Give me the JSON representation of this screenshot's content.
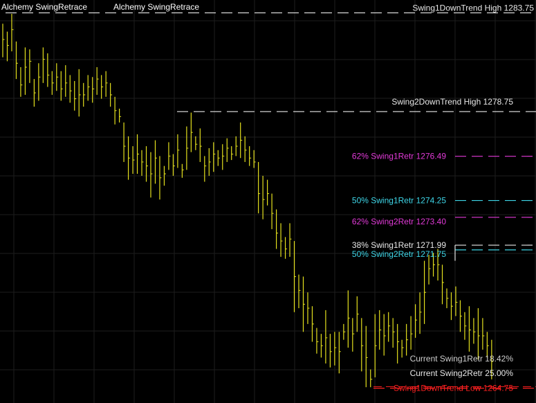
{
  "window": {
    "titles": [
      "Alchemy SwingRetrace",
      "Alchemy SwingRetrace"
    ]
  },
  "colors": {
    "background": "#000000",
    "grid": "#1e1e1e",
    "bars": "#e6e21e",
    "white": "#e8e8e8",
    "magenta": "#e23ad8",
    "cyan": "#3ed6e8",
    "red": "#ff2020",
    "grey": "#cfcfcf"
  },
  "chart_data": {
    "type": "ohlc",
    "ylim": [
      1264.0,
      1284.4
    ],
    "grid": true,
    "levels": [
      {
        "label": "Swing1DownTrend High 1283.75",
        "price": 1283.75,
        "color": "white"
      },
      {
        "label": "Swing2DownTrend High 1278.75",
        "price": 1278.75,
        "color": "white"
      },
      {
        "label": "62% Swing1Retr 1276.49",
        "price": 1276.49,
        "color": "magenta"
      },
      {
        "label": "50% Swing1Retr 1274.25",
        "price": 1274.25,
        "color": "cyan"
      },
      {
        "label": "62% Swing2Retr 1273.40",
        "price": 1273.4,
        "color": "magenta"
      },
      {
        "label": "38% Swing1Retr 1271.99",
        "price": 1271.99,
        "color": "white"
      },
      {
        "label": "50% Swing2Retr 1271.75",
        "price": 1271.75,
        "color": "cyan"
      },
      {
        "label": "Swing1DownTrend Low 1264.75",
        "price": 1264.75,
        "color": "red"
      }
    ],
    "annotations": [
      {
        "text": "Current Swing1Retr 18.42%",
        "color": "grey"
      },
      {
        "text": "Current Swing2Retr 25.00%",
        "color": "white"
      }
    ],
    "bars": [
      [
        1283.2,
        1281.5,
        1282.4
      ],
      [
        1282.8,
        1281.3,
        1282.1
      ],
      [
        1283.7,
        1281.8,
        1282.9
      ],
      [
        1282.3,
        1280.4,
        1281.2
      ],
      [
        1281.0,
        1279.5,
        1280.1
      ],
      [
        1282.0,
        1279.6,
        1281.0
      ],
      [
        1281.9,
        1280.2,
        1281.3
      ],
      [
        1280.4,
        1279.0,
        1279.7
      ],
      [
        1281.2,
        1279.3,
        1280.5
      ],
      [
        1282.0,
        1280.2,
        1281.4
      ],
      [
        1281.7,
        1280.0,
        1280.6
      ],
      [
        1280.8,
        1279.6,
        1280.2
      ],
      [
        1281.2,
        1279.8,
        1280.5
      ],
      [
        1280.8,
        1279.3,
        1279.9
      ],
      [
        1281.1,
        1279.5,
        1280.2
      ],
      [
        1280.6,
        1279.2,
        1279.8
      ],
      [
        1280.3,
        1278.8,
        1279.4
      ],
      [
        1280.9,
        1278.5,
        1279.6
      ],
      [
        1280.2,
        1279.0,
        1279.6
      ],
      [
        1280.6,
        1279.3,
        1280.0
      ],
      [
        1280.5,
        1279.2,
        1279.9
      ],
      [
        1281.0,
        1279.6,
        1280.4
      ],
      [
        1280.6,
        1279.4,
        1280.0
      ],
      [
        1280.8,
        1279.5,
        1280.2
      ],
      [
        1280.2,
        1279.0,
        1279.6
      ],
      [
        1279.5,
        1278.1,
        1278.8
      ],
      [
        1278.9,
        1278.2,
        1278.5
      ],
      [
        1278.2,
        1276.2,
        1277.0
      ],
      [
        1277.5,
        1275.3,
        1276.4
      ],
      [
        1277.0,
        1275.6,
        1276.3
      ],
      [
        1277.6,
        1275.6,
        1276.6
      ],
      [
        1276.8,
        1275.5,
        1276.2
      ],
      [
        1277.0,
        1275.2,
        1276.0
      ],
      [
        1276.7,
        1274.4,
        1275.6
      ],
      [
        1277.3,
        1275.1,
        1276.4
      ],
      [
        1276.5,
        1274.3,
        1275.4
      ],
      [
        1276.0,
        1275.0,
        1275.6
      ],
      [
        1277.2,
        1275.8,
        1276.5
      ],
      [
        1276.6,
        1275.5,
        1276.0
      ],
      [
        1277.6,
        1275.9,
        1276.8
      ],
      [
        1276.1,
        1275.4,
        1275.8
      ],
      [
        1278.0,
        1275.8,
        1276.9
      ],
      [
        1278.7,
        1276.7,
        1277.7
      ],
      [
        1277.5,
        1276.8,
        1277.1
      ],
      [
        1277.9,
        1276.2,
        1277.0
      ],
      [
        1276.5,
        1275.2,
        1276.0
      ],
      [
        1276.9,
        1275.5,
        1276.2
      ],
      [
        1277.2,
        1275.7,
        1276.6
      ],
      [
        1276.8,
        1276.0,
        1276.4
      ],
      [
        1277.1,
        1275.8,
        1276.5
      ],
      [
        1277.4,
        1276.2,
        1276.9
      ],
      [
        1277.0,
        1276.3,
        1276.6
      ],
      [
        1277.5,
        1276.5,
        1277.0
      ],
      [
        1278.2,
        1276.4,
        1277.3
      ],
      [
        1277.5,
        1276.2,
        1276.8
      ],
      [
        1277.0,
        1276.0,
        1276.4
      ],
      [
        1276.8,
        1275.9,
        1276.2
      ],
      [
        1276.2,
        1273.6,
        1274.6
      ],
      [
        1275.5,
        1273.3,
        1274.3
      ],
      [
        1275.3,
        1274.0,
        1274.6
      ],
      [
        1274.6,
        1272.8,
        1273.6
      ],
      [
        1273.8,
        1271.8,
        1272.6
      ],
      [
        1273.1,
        1271.4,
        1272.2
      ],
      [
        1272.4,
        1271.3,
        1271.8
      ],
      [
        1273.1,
        1271.4,
        1272.3
      ],
      [
        1272.2,
        1268.6,
        1270.4
      ],
      [
        1270.5,
        1268.8,
        1269.7
      ],
      [
        1270.4,
        1267.6,
        1269.0
      ],
      [
        1269.6,
        1268.0,
        1268.8
      ],
      [
        1268.9,
        1267.1,
        1268.0
      ],
      [
        1267.8,
        1266.5,
        1267.1
      ],
      [
        1267.5,
        1266.3,
        1266.9
      ],
      [
        1268.7,
        1266.0,
        1267.3
      ],
      [
        1267.5,
        1265.8,
        1266.6
      ],
      [
        1267.6,
        1265.9,
        1266.8
      ],
      [
        1267.6,
        1265.5,
        1266.6
      ],
      [
        1268.0,
        1267.2,
        1267.6
      ],
      [
        1269.7,
        1266.8,
        1268.3
      ],
      [
        1268.3,
        1266.6,
        1267.5
      ],
      [
        1269.4,
        1267.6,
        1268.5
      ],
      [
        1268.3,
        1265.6,
        1266.9
      ],
      [
        1267.9,
        1264.8,
        1266.3
      ],
      [
        1265.7,
        1264.8,
        1265.2
      ],
      [
        1268.5,
        1265.3,
        1266.9
      ],
      [
        1268.7,
        1266.7,
        1267.7
      ],
      [
        1268.5,
        1266.4,
        1267.4
      ],
      [
        1268.6,
        1267.1,
        1267.9
      ],
      [
        1268.3,
        1266.8,
        1267.6
      ],
      [
        1268.0,
        1266.0,
        1267.1
      ],
      [
        1267.2,
        1266.3,
        1266.8
      ],
      [
        1268.0,
        1266.4,
        1267.2
      ],
      [
        1268.4,
        1266.7,
        1267.5
      ],
      [
        1269.0,
        1267.3,
        1268.2
      ],
      [
        1269.6,
        1267.5,
        1268.6
      ],
      [
        1271.2,
        1268.0,
        1269.6
      ],
      [
        1271.5,
        1270.0,
        1270.8
      ],
      [
        1271.6,
        1270.4,
        1271.0
      ],
      [
        1271.8,
        1270.2,
        1271.0
      ],
      [
        1271.0,
        1269.0,
        1270.1
      ],
      [
        1269.8,
        1268.8,
        1269.3
      ],
      [
        1269.6,
        1268.2,
        1268.9
      ],
      [
        1269.9,
        1268.4,
        1269.1
      ],
      [
        1269.2,
        1267.6,
        1268.4
      ],
      [
        1268.6,
        1267.2,
        1267.9
      ],
      [
        1268.9,
        1266.6,
        1267.7
      ],
      [
        1268.3,
        1267.0,
        1267.6
      ],
      [
        1268.8,
        1266.2,
        1267.4
      ],
      [
        1268.3,
        1266.7,
        1267.4
      ],
      [
        1267.6,
        1266.3,
        1266.9
      ],
      [
        1267.2,
        1265.2,
        1266.1
      ]
    ]
  },
  "current_price_line": {
    "price": 1264.9
  }
}
